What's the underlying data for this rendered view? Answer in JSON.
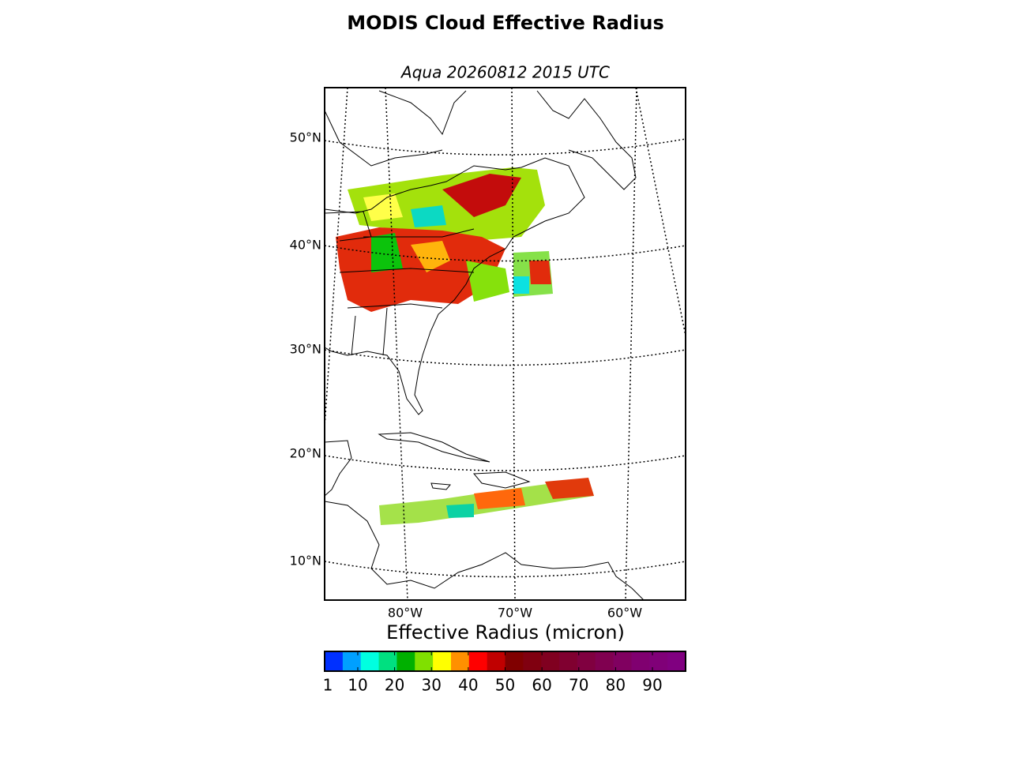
{
  "map": {
    "title": "MODIS Cloud Effective Radius",
    "subtitle": "Aqua 20260812 2015 UTC",
    "lat_labels": [
      "50°N",
      "40°N",
      "30°N",
      "20°N",
      "10°N"
    ],
    "lon_labels": [
      "80°W",
      "70°W",
      "60°W"
    ]
  },
  "colorbar": {
    "label": "Effective Radius (micron)",
    "lim": [
      1,
      99
    ],
    "ticks": [
      1,
      10,
      20,
      30,
      40,
      50,
      60,
      70,
      80,
      90
    ],
    "colors": [
      "#0030ff",
      "#00a0ff",
      "#00ffe0",
      "#00e080",
      "#00b000",
      "#80e000",
      "#ffff00",
      "#ff9000",
      "#ff0000",
      "#c00000",
      "#800000",
      "#800010",
      "#800020",
      "#800030",
      "#800040",
      "#800050",
      "#800060",
      "#800070",
      "#800078",
      "#800080"
    ]
  }
}
